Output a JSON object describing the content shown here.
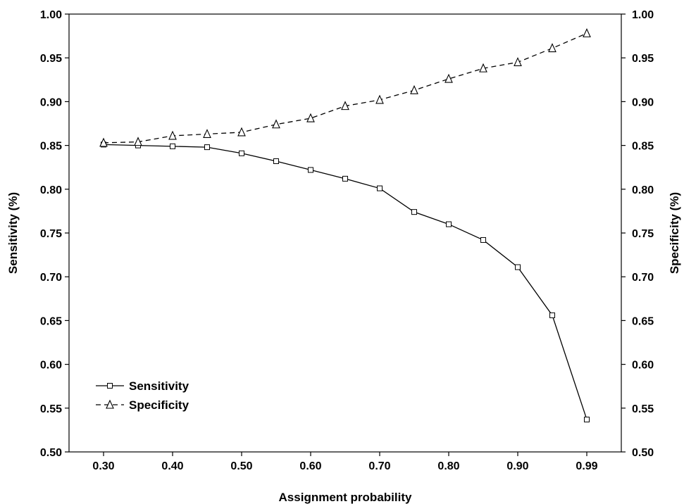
{
  "chart_data": {
    "type": "line",
    "title": "",
    "xlabel": "Assignment probability",
    "ylabel_left": "Sensitivity (%)",
    "ylabel_right": "Specificity (%)",
    "categories": [
      "0.30",
      "0.35",
      "0.40",
      "0.45",
      "0.50",
      "0.55",
      "0.60",
      "0.65",
      "0.70",
      "0.75",
      "0.80",
      "0.85",
      "0.90",
      "0.95",
      "0.99"
    ],
    "x_tick_labels": [
      "0.30",
      "0.40",
      "0.50",
      "0.60",
      "0.70",
      "0.80",
      "0.90",
      "0.99"
    ],
    "ylim": [
      0.5,
      1.0
    ],
    "y_ticks": [
      "0.50",
      "0.55",
      "0.60",
      "0.65",
      "0.70",
      "0.75",
      "0.80",
      "0.85",
      "0.90",
      "0.95",
      "1.00"
    ],
    "grid": false,
    "legend_position": "bottom-left",
    "series": [
      {
        "name": "Sensitivity",
        "axis": "left",
        "line_style": "solid",
        "marker": "square",
        "values": [
          0.851,
          0.85,
          0.849,
          0.848,
          0.841,
          0.832,
          0.822,
          0.812,
          0.801,
          0.774,
          0.76,
          0.742,
          0.711,
          0.656,
          0.537
        ]
      },
      {
        "name": "Specificity",
        "axis": "right",
        "line_style": "dashed",
        "marker": "triangle",
        "values": [
          0.853,
          0.854,
          0.861,
          0.863,
          0.865,
          0.874,
          0.881,
          0.895,
          0.902,
          0.913,
          0.926,
          0.938,
          0.945,
          0.961,
          0.978
        ]
      }
    ],
    "colors": {
      "line": "#000000",
      "marker_fill": "#ffffff",
      "background": "#ffffff"
    }
  }
}
